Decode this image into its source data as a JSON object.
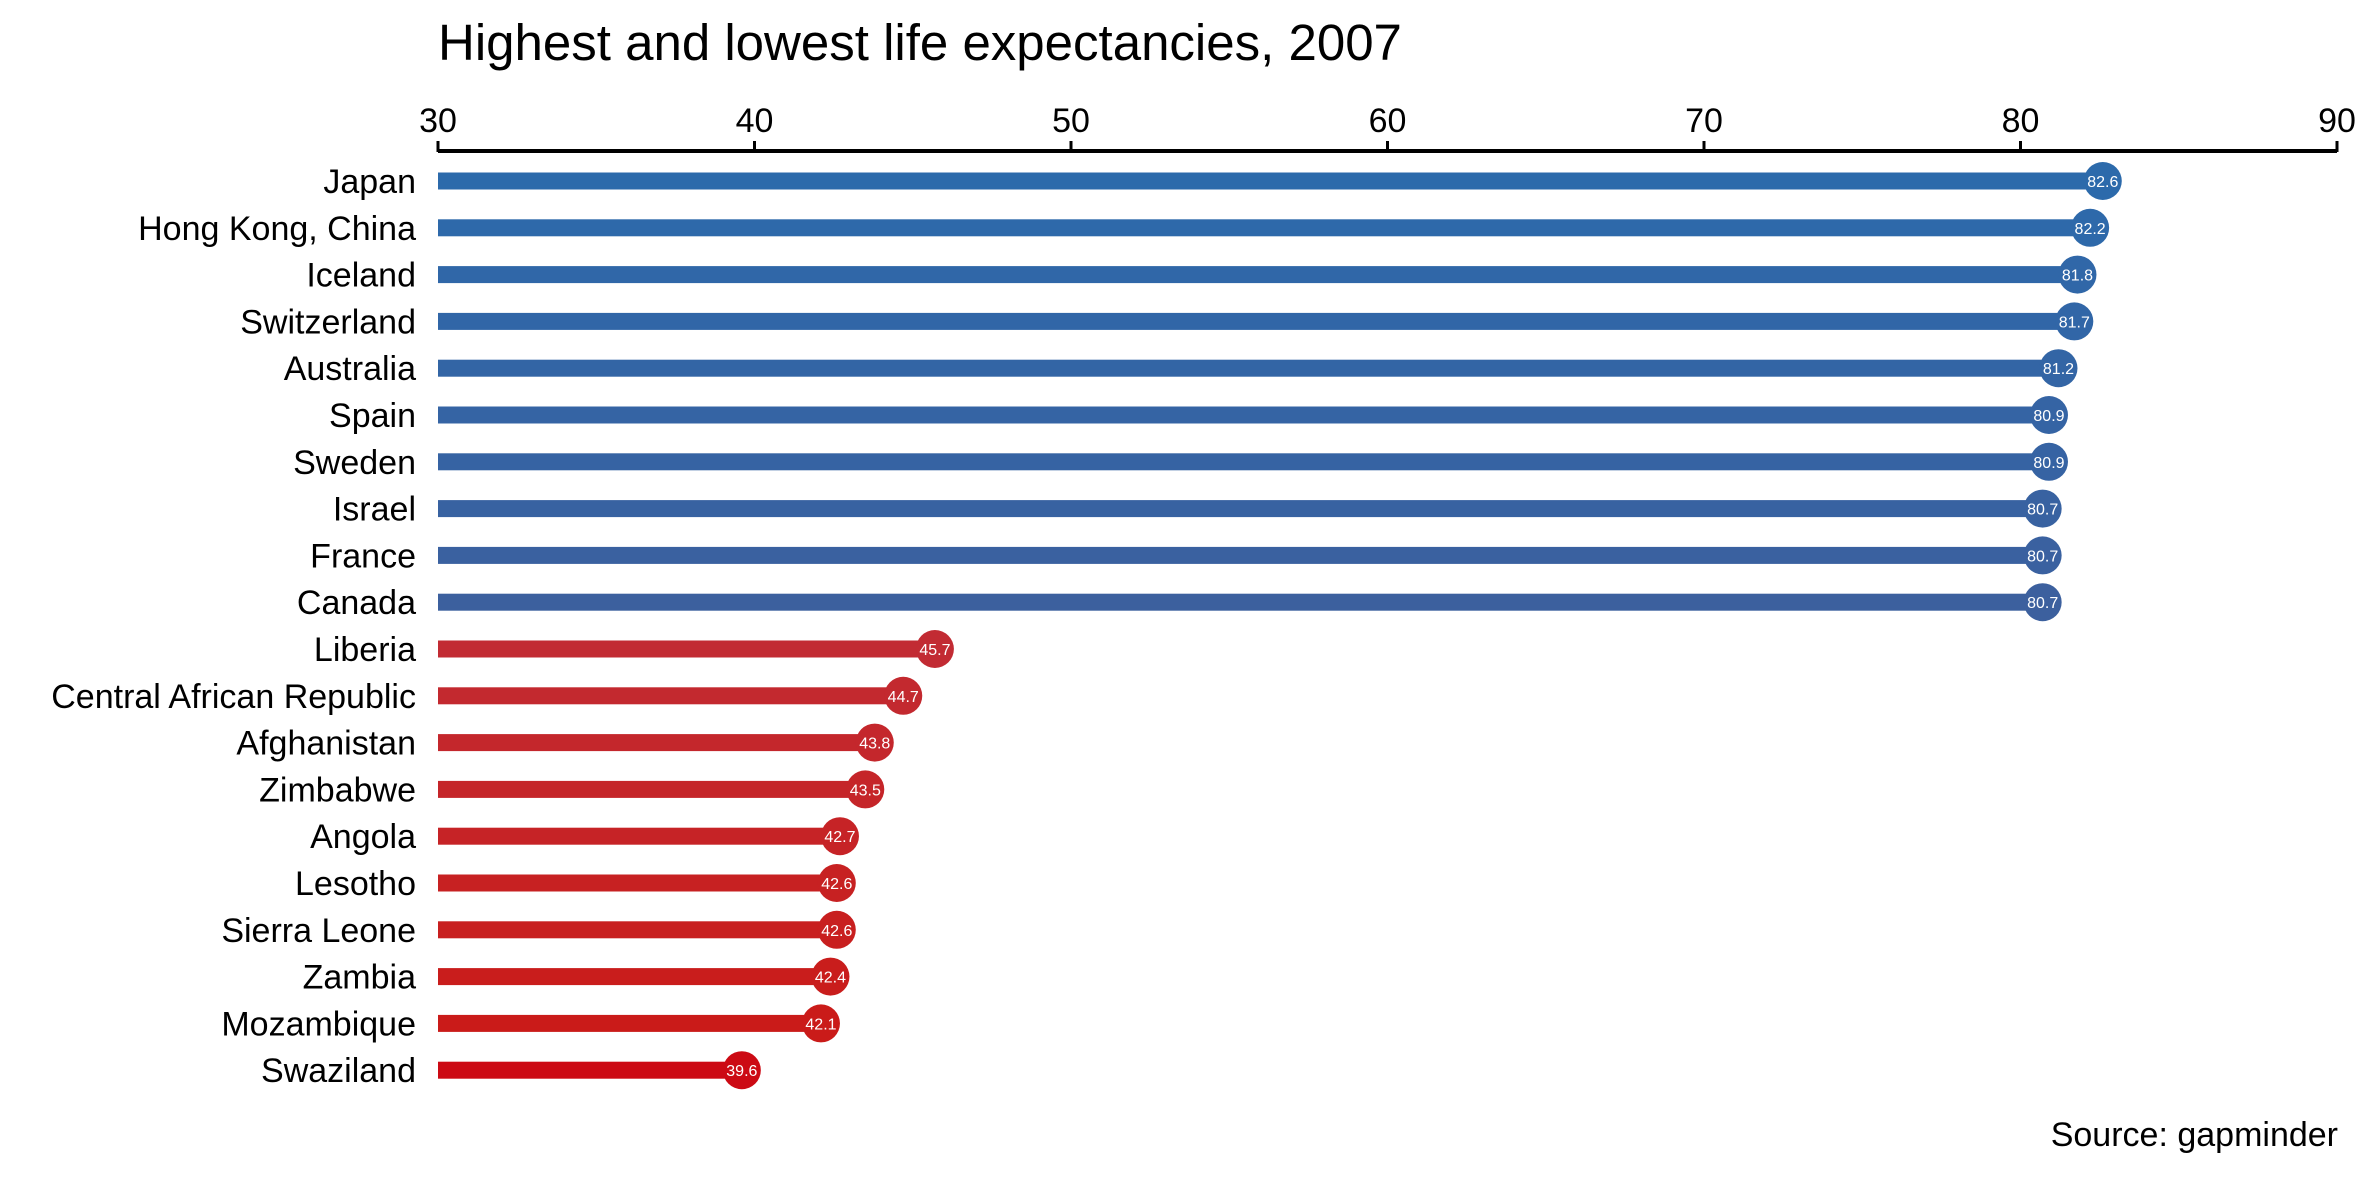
{
  "chart_data": {
    "type": "bar",
    "title": "Highest and lowest life expectancies, 2007",
    "source": "Source: gapminder",
    "xlim": [
      30,
      90
    ],
    "x_ticks": [
      30,
      40,
      50,
      60,
      70,
      80,
      90
    ],
    "axis_position": "top",
    "grid": false,
    "categories": [
      "Japan",
      "Hong Kong, China",
      "Iceland",
      "Switzerland",
      "Australia",
      "Spain",
      "Sweden",
      "Israel",
      "France",
      "Canada",
      "Liberia",
      "Central African Republic",
      "Afghanistan",
      "Zimbabwe",
      "Angola",
      "Lesotho",
      "Sierra Leone",
      "Zambia",
      "Mozambique",
      "Swaziland"
    ],
    "values": [
      82.6,
      82.2,
      81.8,
      81.7,
      81.2,
      80.9,
      80.9,
      80.7,
      80.7,
      80.7,
      45.7,
      44.7,
      43.8,
      43.5,
      42.7,
      42.6,
      42.6,
      42.4,
      42.1,
      39.6
    ],
    "value_labels": [
      "82.6",
      "82.2",
      "81.8",
      "81.7",
      "81.2",
      "80.9",
      "80.9",
      "80.7",
      "80.7",
      "80.7",
      "45.7",
      "44.7",
      "43.8",
      "43.5",
      "42.7",
      "42.6",
      "42.6",
      "42.4",
      "42.1",
      "39.6"
    ],
    "colors": [
      "#2c6aab",
      "#2e69aa",
      "#3067a8",
      "#3166a7",
      "#3365a5",
      "#3564a4",
      "#3663a3",
      "#3862a1",
      "#3a61a0",
      "#3c609e",
      "#c22b33",
      "#c3292f",
      "#c4272c",
      "#c52529",
      "#c62326",
      "#c72122",
      "#c81f1f",
      "#c91d1c",
      "#ca1b19",
      "#cc0a14"
    ]
  }
}
